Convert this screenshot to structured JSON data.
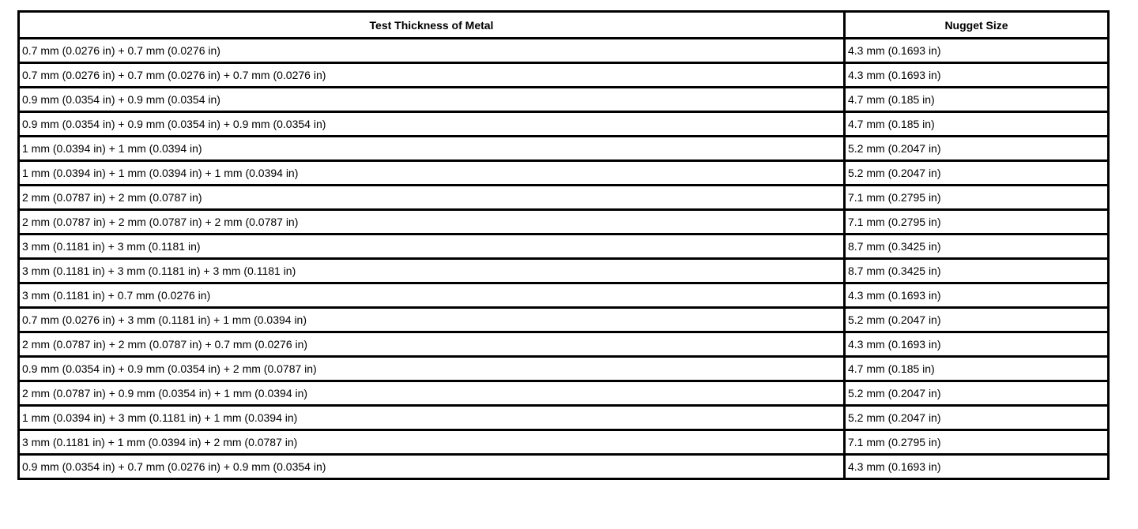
{
  "table": {
    "headers": [
      "Test Thickness of Metal",
      "Nugget Size"
    ],
    "rows": [
      [
        "0.7 mm (0.0276 in) + 0.7 mm (0.0276 in)",
        "4.3 mm (0.1693 in)"
      ],
      [
        "0.7 mm (0.0276 in) + 0.7 mm (0.0276 in) + 0.7 mm (0.0276 in)",
        "4.3 mm (0.1693 in)"
      ],
      [
        "0.9 mm (0.0354 in) + 0.9 mm (0.0354 in)",
        "4.7 mm (0.185 in)"
      ],
      [
        "0.9 mm (0.0354 in) + 0.9 mm (0.0354 in) + 0.9 mm (0.0354 in)",
        "4.7 mm (0.185 in)"
      ],
      [
        "1 mm (0.0394 in) + 1 mm (0.0394 in)",
        "5.2 mm (0.2047 in)"
      ],
      [
        "1 mm (0.0394 in) + 1 mm (0.0394 in) + 1 mm (0.0394 in)",
        "5.2 mm (0.2047 in)"
      ],
      [
        "2 mm (0.0787 in) + 2 mm (0.0787 in)",
        "7.1 mm (0.2795 in)"
      ],
      [
        "2 mm (0.0787 in) + 2 mm (0.0787 in) + 2 mm (0.0787 in)",
        "7.1 mm (0.2795 in)"
      ],
      [
        "3 mm (0.1181 in) + 3 mm (0.1181 in)",
        "8.7 mm (0.3425 in)"
      ],
      [
        "3 mm (0.1181 in) + 3 mm (0.1181 in) + 3 mm (0.1181 in)",
        "8.7 mm (0.3425 in)"
      ],
      [
        "3 mm (0.1181 in) + 0.7 mm (0.0276 in)",
        "4.3 mm (0.1693 in)"
      ],
      [
        "0.7 mm (0.0276 in) + 3 mm (0.1181 in) + 1 mm (0.0394 in)",
        "5.2 mm (0.2047 in)"
      ],
      [
        "2 mm (0.0787 in) + 2 mm (0.0787 in) + 0.7 mm (0.0276 in)",
        "4.3 mm (0.1693 in)"
      ],
      [
        "0.9 mm (0.0354 in) + 0.9 mm (0.0354 in) + 2 mm (0.0787 in)",
        "4.7 mm (0.185 in)"
      ],
      [
        "2 mm (0.0787 in) + 0.9 mm (0.0354 in) + 1 mm (0.0394 in)",
        "5.2 mm (0.2047 in)"
      ],
      [
        "1 mm (0.0394 in) + 3 mm (0.1181 in) + 1 mm (0.0394 in)",
        "5.2 mm (0.2047 in)"
      ],
      [
        "3 mm (0.1181 in) + 1 mm (0.0394 in) + 2 mm (0.0787 in)",
        "7.1 mm (0.2795 in)"
      ],
      [
        "0.9 mm (0.0354 in) + 0.7 mm (0.0276 in) + 0.9 mm (0.0354 in)",
        "4.3 mm (0.1693 in)"
      ]
    ]
  }
}
